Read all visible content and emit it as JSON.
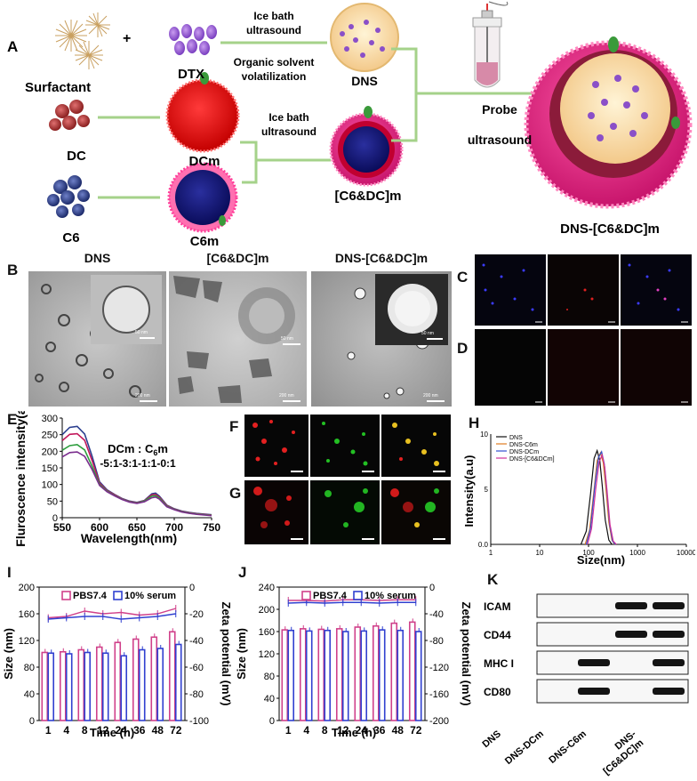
{
  "panel_a": {
    "letter": "A",
    "surfactant": "Surfactant",
    "plus": "+",
    "dtx": "DTX",
    "ice_bath_1a": "Ice bath",
    "ice_bath_1b": "ultrasound",
    "organic_1": "Organic solvent",
    "organic_2": "volatilization",
    "dns": "DNS",
    "dc": "DC",
    "dcm": "DCm",
    "c6": "C6",
    "c6m": "C6m",
    "ice_bath_2a": "Ice bath",
    "ice_bath_2b": "ultrasound",
    "c6dcm": "[C6&DC]m",
    "probe_1": "Probe",
    "probe_2": "ultrasound",
    "final": "DNS-[C6&DC]m"
  },
  "panel_b": {
    "letter": "B",
    "titles": [
      "DNS",
      "[C6&DC]m",
      "DNS-[C6&DC]m"
    ],
    "scale_200": "200 nm",
    "scale_50": "50 nm"
  },
  "panel_c": {
    "letter": "C"
  },
  "panel_d": {
    "letter": "D"
  },
  "panel_f": {
    "letter": "F"
  },
  "panel_g": {
    "letter": "G"
  },
  "panel_e": {
    "letter": "E",
    "legend_title": "DCm : C6m",
    "legend_title_a": "DCm : C",
    "legend_title_sub": "6",
    "legend_title_b": "m",
    "ratios": "-5:1-3:1-1:1-0:1",
    "colors": [
      "#2b3f8f",
      "#c2185b",
      "#2e9e3e",
      "#7b2d8e"
    ],
    "chart_data": {
      "type": "line",
      "xlabel": "Wavelength(nm)",
      "ylabel": "Fluroscence intensity(a.u.)",
      "xlim": [
        550,
        750
      ],
      "ylim": [
        0,
        300
      ],
      "xticks": [
        550,
        600,
        650,
        700,
        750
      ],
      "yticks": [
        0,
        50,
        100,
        150,
        200,
        250,
        300
      ],
      "x": [
        550,
        560,
        570,
        580,
        590,
        600,
        610,
        620,
        630,
        640,
        650,
        660,
        670,
        675,
        680,
        690,
        700,
        710,
        720,
        730,
        740,
        750
      ],
      "series": [
        {
          "values": [
            250,
            272,
            275,
            252,
            185,
            108,
            84,
            70,
            58,
            50,
            46,
            52,
            72,
            74,
            65,
            38,
            27,
            20,
            16,
            13,
            11,
            9
          ]
        },
        {
          "values": [
            232,
            251,
            253,
            233,
            172,
            104,
            82,
            69,
            57,
            49,
            45,
            51,
            69,
            70,
            62,
            37,
            26,
            19,
            15,
            12,
            10,
            8
          ]
        },
        {
          "values": [
            203,
            217,
            220,
            204,
            155,
            100,
            80,
            67,
            56,
            48,
            44,
            50,
            65,
            66,
            59,
            35,
            25,
            18,
            14,
            11,
            9,
            7
          ]
        },
        {
          "values": [
            183,
            196,
            198,
            185,
            145,
            97,
            78,
            66,
            55,
            47,
            43,
            48,
            60,
            62,
            56,
            33,
            24,
            17,
            13,
            10,
            8,
            6
          ]
        }
      ]
    }
  },
  "panel_h": {
    "letter": "H",
    "chart_data": {
      "type": "line",
      "xlabel": "Size(nm)",
      "ylabel": "Intensity(a.u)",
      "x_scale": "log",
      "xlim": [
        1,
        10000
      ],
      "ylim": [
        0,
        10
      ],
      "xticks": [
        "1",
        "10",
        "100",
        "1000",
        "10000"
      ],
      "yticks": [
        "0.0",
        "5",
        "10"
      ],
      "legend_position": "top-left",
      "series": [
        {
          "name": "DNS",
          "color": "#111111",
          "x": [
            70,
            90,
            110,
            130,
            150,
            170,
            190,
            220,
            260,
            300
          ],
          "values": [
            0,
            1.2,
            4.6,
            7.8,
            8.5,
            7.6,
            5.4,
            2.2,
            0.4,
            0
          ]
        },
        {
          "name": "DNS-C6m",
          "color": "#e07a1f",
          "x": [
            85,
            105,
            130,
            150,
            175,
            200,
            225,
            260,
            300,
            340
          ],
          "values": [
            0,
            1.3,
            5.0,
            7.6,
            8.3,
            7.4,
            5.2,
            2.0,
            0.4,
            0
          ]
        },
        {
          "name": "DNS-DCm",
          "color": "#3050d0",
          "x": [
            90,
            110,
            135,
            160,
            185,
            210,
            235,
            270,
            310,
            350
          ],
          "values": [
            0,
            1.5,
            5.4,
            7.9,
            8.4,
            7.3,
            5.0,
            1.8,
            0.3,
            0
          ]
        },
        {
          "name": "DNS-[C6&DCm]",
          "color": "#d0309a",
          "x": [
            95,
            115,
            140,
            165,
            190,
            215,
            240,
            275,
            320,
            370
          ],
          "values": [
            0,
            1.4,
            5.0,
            7.5,
            8.1,
            7.0,
            4.8,
            1.8,
            0.3,
            0
          ]
        }
      ]
    }
  },
  "panel_i": {
    "letter": "I",
    "chart_data": {
      "type": "bar",
      "categories": [
        "1",
        "4",
        "8",
        "12",
        "24",
        "36",
        "48",
        "72"
      ],
      "xlabel": "Time   (h)",
      "ylabel": "Size (nm)",
      "y2label": "Zeta potential (mV)",
      "ylim": [
        0,
        200
      ],
      "yticks": [
        0,
        40,
        80,
        120,
        160,
        200
      ],
      "y2lim": [
        -100,
        0
      ],
      "y2ticks": [
        0,
        -20,
        -40,
        -60,
        -80,
        -100
      ],
      "legend_position": "top",
      "series": [
        {
          "name": "PBS7.4",
          "color": "#d0408a",
          "values": [
            102,
            103,
            106,
            110,
            117,
            122,
            125,
            133
          ]
        },
        {
          "name": "10% serum",
          "color": "#3040d0",
          "values": [
            101,
            100,
            102,
            101,
            97,
            106,
            108,
            114
          ]
        }
      ],
      "zeta_series": [
        {
          "name": "PBS7.4",
          "color": "#d0408a",
          "values": [
            -23,
            -22,
            -18,
            -20,
            -19,
            -21,
            -20,
            -16
          ]
        },
        {
          "name": "10% serum",
          "color": "#3040d0",
          "values": [
            -24,
            -23,
            -22,
            -22,
            -24,
            -23,
            -22,
            -20
          ]
        }
      ]
    }
  },
  "panel_j": {
    "letter": "J",
    "chart_data": {
      "type": "bar",
      "categories": [
        "1",
        "4",
        "8",
        "12",
        "24",
        "36",
        "48",
        "72"
      ],
      "xlabel": "Time (h)",
      "ylabel": "Size (nm)",
      "y2label": "Zeta potential (mV)",
      "ylim": [
        0,
        240
      ],
      "yticks": [
        0,
        40,
        80,
        120,
        160,
        200,
        240
      ],
      "y2lim": [
        -200,
        0
      ],
      "y2ticks": [
        0,
        -40,
        -80,
        -120,
        -160,
        -200
      ],
      "legend_position": "top",
      "series": [
        {
          "name": "PBS7.4",
          "color": "#d0408a",
          "values": [
            163,
            165,
            164,
            165,
            168,
            170,
            175,
            177
          ]
        },
        {
          "name": "10% serum",
          "color": "#3040d0",
          "values": [
            162,
            161,
            162,
            160,
            161,
            163,
            162,
            160
          ]
        }
      ],
      "zeta_series": [
        {
          "name": "PBS7.4",
          "color": "#d0408a",
          "values": [
            -20,
            -20,
            -21,
            -19,
            -19,
            -20,
            -19,
            -19
          ]
        },
        {
          "name": "10% serum",
          "color": "#3040d0",
          "values": [
            -24,
            -23,
            -24,
            -23,
            -23,
            -24,
            -23,
            -23
          ]
        }
      ]
    }
  },
  "panel_k": {
    "letter": "K",
    "rows": [
      "ICAM",
      "CD44",
      "MHC I",
      "CD80"
    ],
    "lanes": [
      "DNS",
      "DNS-DCm",
      "DNS-C6m",
      "DNS-[C6&DC]m"
    ],
    "lane_4a": "DNS-",
    "lane_4b": "[C6&DC]m"
  }
}
